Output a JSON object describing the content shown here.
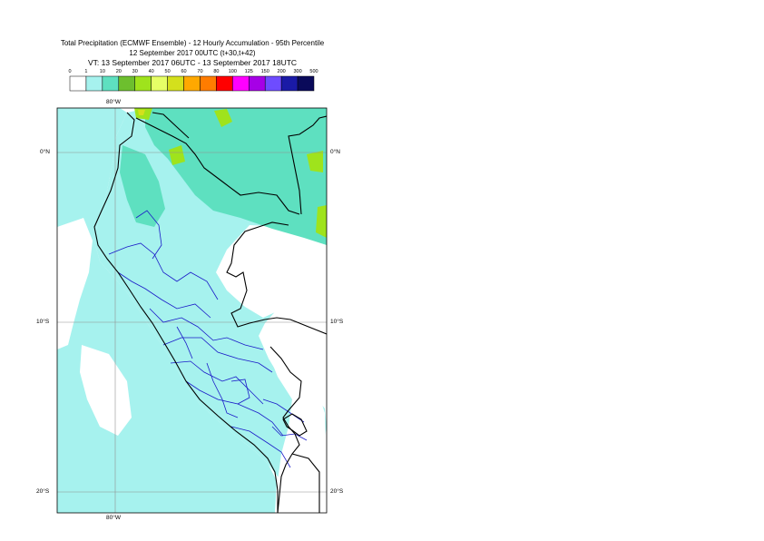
{
  "header": {
    "title_line1": "Total Precipitation (ECMWF Ensemble) - 12 Hourly Accumulation - 95th Percentile",
    "title_line2": "12 September 2017 00UTC (t+30,t+42)",
    "title_line3": "VT: 13 September 2017 06UTC - 13 September 2017 18UTC"
  },
  "legend": {
    "thresholds": [
      "0",
      "1",
      "10",
      "20",
      "30",
      "40",
      "50",
      "60",
      "70",
      "80",
      "100",
      "125",
      "150",
      "200",
      "300",
      "500"
    ],
    "colors": [
      "#ffffff",
      "#a6f2ee",
      "#5ee0c0",
      "#6dbf2e",
      "#9fe31c",
      "#e6ff66",
      "#d4e01c",
      "#ffa800",
      "#ff7c00",
      "#ff0000",
      "#ff00ff",
      "#a600e6",
      "#6e4cff",
      "#1a1aa6",
      "#0a0a5a"
    ]
  },
  "map": {
    "lat_labels": [
      "0°N",
      "10°S",
      "20°S"
    ],
    "lon_label_top": "80°W",
    "lon_label_bottom": "80°W",
    "colors": {
      "ocean_light": "#a6f2ee",
      "land_white": "#ffffff",
      "medium": "#5ee0c0",
      "green": "#9fe31c",
      "olive": "#d4e01c",
      "border_country": "#000000",
      "border_region": "#1a1ac8",
      "grid": "#909090"
    }
  }
}
